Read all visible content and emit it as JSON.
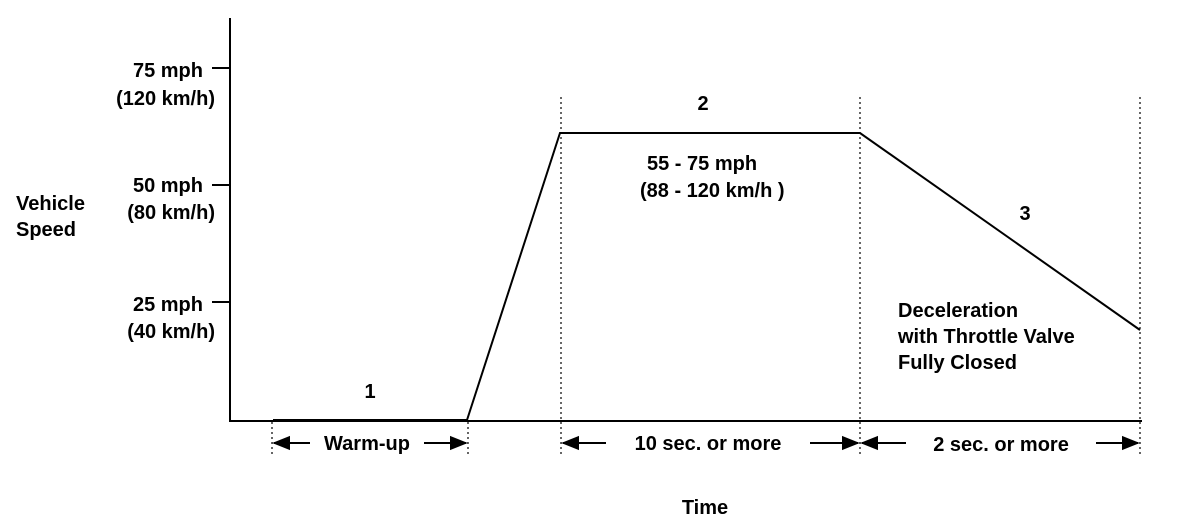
{
  "axis": {
    "y_label_line1": "Vehicle",
    "y_label_line2": "Speed",
    "x_label": "Time",
    "ticks": [
      {
        "mph": "75 mph",
        "kmh": "(120 km/h)"
      },
      {
        "mph": "50 mph",
        "kmh": "(80 km/h)"
      },
      {
        "mph": "25 mph",
        "kmh": "(40 km/h)"
      }
    ]
  },
  "phases": {
    "p1": "1",
    "p2": "2",
    "p3": "3"
  },
  "annotations": {
    "speed_range_line1": "55 - 75 mph",
    "speed_range_line2": "(88 - 120 km/h )",
    "decel_line1": "Deceleration",
    "decel_line2": "with Throttle Valve",
    "decel_line3": "Fully Closed"
  },
  "durations": {
    "warmup": "Warm-up",
    "ten_sec": "10 sec. or more",
    "two_sec": "2 sec. or more"
  }
}
